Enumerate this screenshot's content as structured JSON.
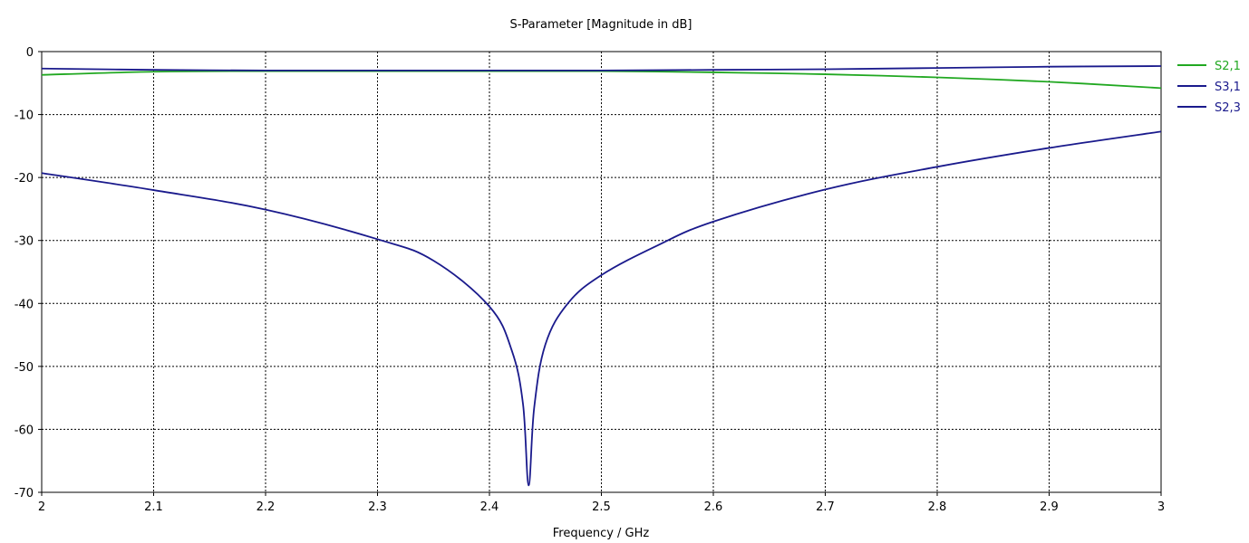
{
  "chart_data": {
    "type": "line",
    "title": "S-Parameter [Magnitude in dB]",
    "xlabel": "Frequency / GHz",
    "ylabel": "",
    "xlim": [
      2,
      3
    ],
    "ylim": [
      -70,
      0
    ],
    "grid": true,
    "legend_position": "right",
    "x_ticks": [
      2,
      2.1,
      2.2,
      2.3,
      2.4,
      2.5,
      2.6,
      2.7,
      2.8,
      2.9,
      3
    ],
    "x_tick_labels": [
      "2",
      "2.1",
      "2.2",
      "2.3",
      "2.4",
      "2.5",
      "2.6",
      "2.7",
      "2.8",
      "2.9",
      "3"
    ],
    "y_ticks": [
      0,
      -10,
      -20,
      -30,
      -40,
      -50,
      -60,
      -70
    ],
    "y_tick_labels": [
      "0",
      "-10",
      "-20",
      "-30",
      "-40",
      "-50",
      "-60",
      "-70"
    ],
    "series": [
      {
        "name": "S2,1",
        "color": "#21a821",
        "x": [
          2,
          2.1,
          2.2,
          2.3,
          2.4,
          2.5,
          2.6,
          2.7,
          2.8,
          2.9,
          3
        ],
        "y": [
          -3.7,
          -3.2,
          -3.1,
          -3.1,
          -3.1,
          -3.1,
          -3.3,
          -3.6,
          -4.1,
          -4.8,
          -5.8
        ]
      },
      {
        "name": "S3,1",
        "color": "#1a1a8c",
        "x": [
          2,
          2.1,
          2.2,
          2.3,
          2.4,
          2.5,
          2.6,
          2.7,
          2.8,
          2.9,
          3
        ],
        "y": [
          -2.7,
          -2.9,
          -3.0,
          -3.0,
          -3.0,
          -3.0,
          -2.9,
          -2.8,
          -2.6,
          -2.4,
          -2.3
        ]
      },
      {
        "name": "S2,3",
        "color": "#1a1a8c",
        "x": [
          2,
          2.1,
          2.2,
          2.3,
          2.35,
          2.4,
          2.42,
          2.43,
          2.435,
          2.44,
          2.45,
          2.47,
          2.5,
          2.55,
          2.6,
          2.7,
          2.8,
          2.9,
          3
        ],
        "y": [
          -19.3,
          -22.0,
          -25.1,
          -29.8,
          -33.2,
          -40.5,
          -47.5,
          -56.0,
          -68.9,
          -56.5,
          -46.5,
          -40.0,
          -35.5,
          -30.8,
          -27.0,
          -21.9,
          -18.3,
          -15.3,
          -12.7
        ]
      }
    ]
  }
}
